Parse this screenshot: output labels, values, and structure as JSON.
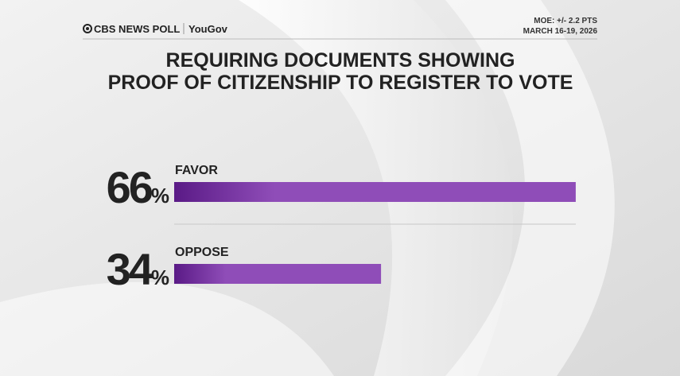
{
  "header": {
    "brand": "CBS NEWS POLL",
    "partner": "YouGov",
    "moe": "MOE: +/- 2.2 PTS",
    "dates": "MARCH 16-19, 2026"
  },
  "chart_data": {
    "type": "bar",
    "orientation": "horizontal",
    "title": [
      "REQUIRING DOCUMENTS SHOWING",
      "PROOF OF CITIZENSHIP TO REGISTER TO VOTE"
    ],
    "categories": [
      "FAVOR",
      "OPPOSE"
    ],
    "values": [
      66,
      34
    ],
    "value_labels": [
      "66%",
      "34%"
    ],
    "xlim": [
      0,
      100
    ],
    "color": [
      "#5a1a86",
      "#8f4db8"
    ]
  }
}
